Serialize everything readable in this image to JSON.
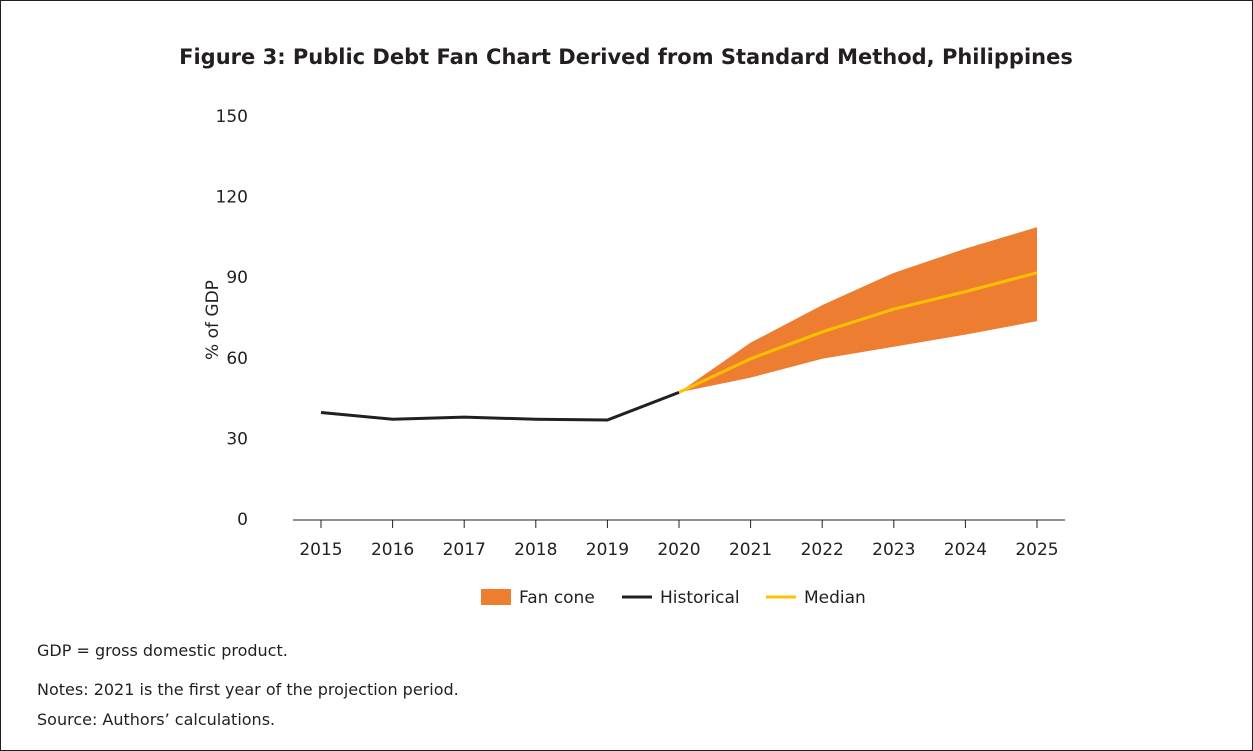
{
  "chart_data": {
    "type": "fan",
    "title": "Figure 3: Public Debt Fan Chart Derived from Standard Method, Philippines",
    "y_label": "% of GDP",
    "x": [
      2015,
      2016,
      2017,
      2018,
      2019,
      2020,
      2021,
      2022,
      2023,
      2024,
      2025
    ],
    "ylim": [
      0,
      150
    ],
    "yticks": [
      0,
      30,
      60,
      90,
      120,
      150
    ],
    "series": [
      {
        "name": "Fan cone",
        "color": "#ed7d31",
        "upper": [
          null,
          null,
          null,
          null,
          null,
          47.5,
          66,
          80,
          92,
          101,
          109
        ],
        "lower": [
          null,
          null,
          null,
          null,
          null,
          47.5,
          53,
          60,
          64.5,
          69,
          74
        ]
      },
      {
        "name": "Historical",
        "color": "#231f20",
        "values": [
          40,
          37.5,
          38.3,
          37.5,
          37.2,
          47.5,
          null,
          null,
          null,
          null,
          null
        ]
      },
      {
        "name": "Median",
        "color": "#ffc000",
        "values": [
          null,
          null,
          null,
          null,
          null,
          47.5,
          60,
          70,
          78.5,
          85,
          92
        ]
      }
    ],
    "notes": [
      "GDP = gross domestic product.",
      "Notes: 2021 is the first year of the projection period.",
      "Source: Authors’ calculations."
    ]
  }
}
